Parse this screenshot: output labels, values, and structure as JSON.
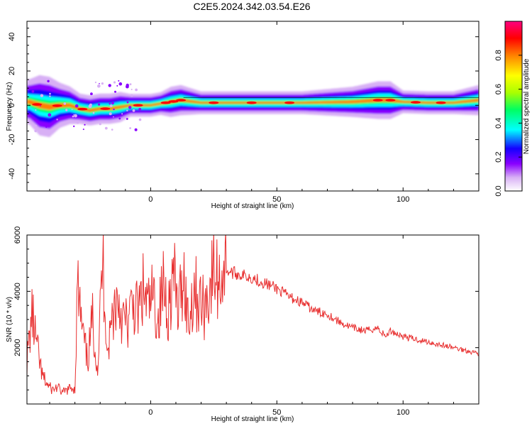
{
  "figure": {
    "title": "C2E5.2024.342.03.54.E26"
  },
  "chart_data": [
    {
      "type": "heatmap",
      "xlabel": "Height of straight line (km)",
      "ylabel": "Frequency (Hz)",
      "xlim": [
        -49,
        130
      ],
      "ylim": [
        -50,
        49
      ],
      "xticks": [
        0,
        50,
        100
      ],
      "yticks": [
        -40,
        -20,
        0,
        20,
        40
      ],
      "colorbar": {
        "label": "Normalized spectral amplitude",
        "range": [
          0,
          1
        ],
        "ticks": [
          "0.0",
          "0.2",
          "0.4",
          "0.6",
          "0.8"
        ],
        "colormap": [
          "#ffffff",
          "#d8b0f5",
          "#8a00ff",
          "#1400ff",
          "#00ffff",
          "#00ff60",
          "#aaff00",
          "#ffff00",
          "#ff8000",
          "#ff0000",
          "#ff0080"
        ]
      },
      "ridge": {
        "x": [
          -48,
          -44,
          -40,
          -36,
          -32,
          -28,
          -24,
          -20,
          -16,
          -12,
          -8,
          -4,
          0,
          4,
          8,
          12,
          20,
          40,
          60,
          80,
          90,
          95,
          100,
          110,
          120,
          130
        ],
        "frequency": [
          2,
          0,
          -1,
          0,
          0,
          -2,
          -3,
          -2,
          -2,
          -1,
          0,
          0,
          0,
          1,
          2,
          3,
          1.5,
          1.5,
          1.5,
          2,
          3,
          3,
          2,
          1.5,
          1.5,
          3
        ],
        "bandwidth": [
          6,
          8,
          8,
          6,
          5,
          4,
          4,
          4,
          4,
          4,
          3,
          3,
          3,
          3,
          4,
          4,
          3,
          3,
          3,
          4,
          5,
          5,
          3,
          3,
          3,
          4
        ],
        "hot_spots": [
          -45,
          -37,
          -27,
          -18,
          -5,
          6,
          9,
          12,
          25,
          40,
          55,
          90,
          95,
          105,
          115
        ]
      }
    },
    {
      "type": "line",
      "xlabel": "Height of straight line (km)",
      "ylabel": "SNR (10 * v/v)",
      "xlim": [
        -49,
        130
      ],
      "ylim": [
        0,
        6000
      ],
      "xticks": [
        0,
        50,
        100
      ],
      "yticks": [
        2000,
        4000,
        6000
      ],
      "color": "#e83030",
      "series": [
        {
          "x": [
            -49,
            -47,
            -45,
            -43,
            -41,
            -39,
            -37,
            -35,
            -33,
            -31,
            -30,
            -29,
            -27,
            -25,
            -23,
            -21,
            -19,
            -17,
            -15,
            -13,
            -11,
            -9,
            -7,
            -5,
            -3,
            -1,
            1,
            3,
            5,
            7,
            9,
            11,
            13,
            15,
            17,
            19,
            21,
            23,
            25,
            27,
            29,
            31,
            35,
            40,
            45,
            50,
            55,
            60,
            65,
            70,
            75,
            80,
            85,
            90,
            93,
            95,
            100,
            105,
            110,
            115,
            120,
            125,
            130
          ],
          "y": [
            1500,
            3200,
            2000,
            1000,
            700,
            500,
            600,
            400,
            500,
            600,
            500,
            4200,
            2500,
            1500,
            3000,
            1200,
            5200,
            1800,
            3300,
            3800,
            3000,
            2800,
            3600,
            3200,
            4000,
            3400,
            3800,
            3000,
            4200,
            3400,
            4600,
            3200,
            4800,
            2800,
            4200,
            3700,
            3400,
            4000,
            4700,
            4300,
            4900,
            4700,
            4600,
            4500,
            4300,
            4100,
            3800,
            3600,
            3300,
            3200,
            2900,
            2700,
            2600,
            2700,
            2400,
            2600,
            2400,
            2300,
            2200,
            2100,
            2000,
            1900,
            1800
          ]
        }
      ]
    }
  ]
}
